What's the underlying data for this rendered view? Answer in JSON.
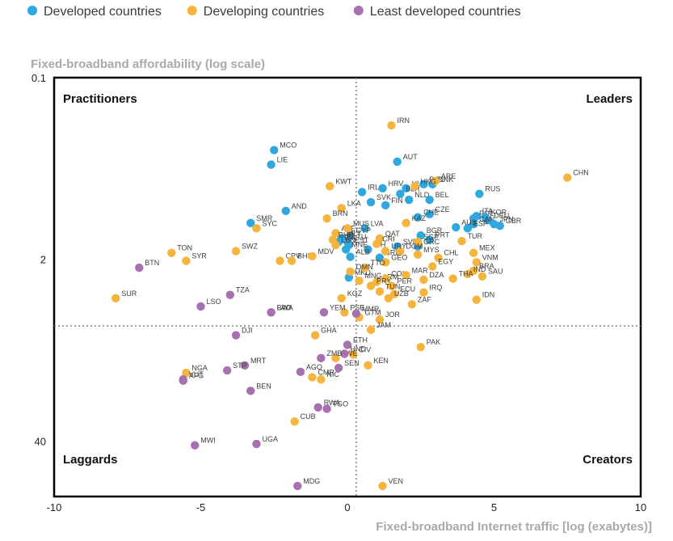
{
  "chart_data": {
    "type": "scatter",
    "title": "",
    "xlabel": "Fixed-broadband Internet traffic [log (exabytes)]",
    "ylabel": "Fixed-broadband affordability (log scale)",
    "xlim": [
      -10,
      10
    ],
    "ylim_log": [
      0.1,
      100
    ],
    "x_ticks": [
      {
        "value": -10,
        "label": "-10"
      },
      {
        "value": -5,
        "label": "-5"
      },
      {
        "value": 0,
        "label": "0"
      },
      {
        "value": 5,
        "label": "5"
      },
      {
        "value": 10,
        "label": "10"
      }
    ],
    "y_ticks": [
      {
        "value": 0.1,
        "label": "0.1"
      },
      {
        "value": 2,
        "label": "2"
      },
      {
        "value": 40,
        "label": "40"
      }
    ],
    "x_divider": 0.3,
    "y_divider": 6,
    "quadrants": {
      "top_left": "Practitioners",
      "top_right": "Leaders",
      "bottom_left": "Laggards",
      "bottom_right": "Creators"
    },
    "series": [
      {
        "name": "Developed countries",
        "key": "developed",
        "color": "#2ea8de"
      },
      {
        "name": "Developing countries",
        "key": "developing",
        "color": "#f5b53c"
      },
      {
        "name": "Least developed countries",
        "key": "least",
        "color": "#a770b0"
      }
    ],
    "points": [
      {
        "code": "MCO",
        "s": "developed",
        "x": -2.5,
        "y": 0.33
      },
      {
        "code": "LIE",
        "s": "developed",
        "x": -2.6,
        "y": 0.42
      },
      {
        "code": "AND",
        "s": "developed",
        "x": -2.1,
        "y": 0.9
      },
      {
        "code": "SMR",
        "s": "developed",
        "x": -3.3,
        "y": 1.1
      },
      {
        "code": "AUT",
        "s": "developed",
        "x": 1.7,
        "y": 0.4
      },
      {
        "code": "IRL",
        "s": "developed",
        "x": 0.5,
        "y": 0.66
      },
      {
        "code": "HRV",
        "s": "developed",
        "x": 1.2,
        "y": 0.62
      },
      {
        "code": "HUN",
        "s": "developed",
        "x": 2.0,
        "y": 0.62
      },
      {
        "code": "BLR",
        "s": "developed",
        "x": 1.8,
        "y": 0.68
      },
      {
        "code": "DNK",
        "s": "developed",
        "x": 2.9,
        "y": 0.58
      },
      {
        "code": "ROU",
        "s": "developed",
        "x": 2.6,
        "y": 0.58
      },
      {
        "code": "NLD",
        "s": "developed",
        "x": 2.1,
        "y": 0.75
      },
      {
        "code": "BEL",
        "s": "developed",
        "x": 2.8,
        "y": 0.75
      },
      {
        "code": "SVK",
        "s": "developed",
        "x": 0.8,
        "y": 0.78
      },
      {
        "code": "FIN",
        "s": "developed",
        "x": 1.3,
        "y": 0.82
      },
      {
        "code": "RUS",
        "s": "developed",
        "x": 4.5,
        "y": 0.68
      },
      {
        "code": "CZE",
        "s": "developed",
        "x": 2.8,
        "y": 0.95
      },
      {
        "code": "CHE",
        "s": "developed",
        "x": 2.4,
        "y": 1.0
      },
      {
        "code": "ITA",
        "s": "developed",
        "x": 4.4,
        "y": 0.98
      },
      {
        "code": "POL",
        "s": "developed",
        "x": 4.3,
        "y": 1.02
      },
      {
        "code": "KOR",
        "s": "developed",
        "x": 4.7,
        "y": 1.0
      },
      {
        "code": "DEU",
        "s": "developed",
        "x": 4.8,
        "y": 1.05
      },
      {
        "code": "CAN",
        "s": "developed",
        "x": 4.3,
        "y": 1.12
      },
      {
        "code": "JPN",
        "s": "developed",
        "x": 5.0,
        "y": 1.12
      },
      {
        "code": "ESP",
        "s": "developed",
        "x": 4.1,
        "y": 1.2
      },
      {
        "code": "GBR",
        "s": "developed",
        "x": 5.2,
        "y": 1.15
      },
      {
        "code": "AUS",
        "s": "developed",
        "x": 3.7,
        "y": 1.18
      },
      {
        "code": "LVA",
        "s": "developed",
        "x": 0.6,
        "y": 1.2
      },
      {
        "code": "CYP",
        "s": "developed",
        "x": 0.1,
        "y": 1.35
      },
      {
        "code": "LTU",
        "s": "developed",
        "x": 0.0,
        "y": 1.5
      },
      {
        "code": "EST",
        "s": "developed",
        "x": 0.05,
        "y": 1.58
      },
      {
        "code": "BGR",
        "s": "developed",
        "x": 2.5,
        "y": 1.35
      },
      {
        "code": "PRT",
        "s": "developed",
        "x": 2.8,
        "y": 1.45
      },
      {
        "code": "MLT",
        "s": "developed",
        "x": -0.2,
        "y": 1.42
      },
      {
        "code": "SVN",
        "s": "developed",
        "x": 1.7,
        "y": 1.62
      },
      {
        "code": "GRC",
        "s": "developed",
        "x": 2.4,
        "y": 1.62
      },
      {
        "code": "SRB",
        "s": "developed",
        "x": 1.1,
        "y": 1.95
      },
      {
        "code": "BIH",
        "s": "developed",
        "x": 0.7,
        "y": 1.7
      },
      {
        "code": "ALB",
        "s": "developed",
        "x": 0.1,
        "y": 1.92
      },
      {
        "code": "MKD",
        "s": "developed",
        "x": 0.05,
        "y": 2.7
      },
      {
        "code": "MNE",
        "s": "developed",
        "x": -0.05,
        "y": 1.7
      },
      {
        "code": "ISL",
        "s": "developed",
        "x": -0.3,
        "y": 1.5
      },
      {
        "code": "IRN",
        "s": "developing",
        "x": 1.5,
        "y": 0.22
      },
      {
        "code": "CHN",
        "s": "developing",
        "x": 7.5,
        "y": 0.52
      },
      {
        "code": "ARE",
        "s": "developing",
        "x": 3.0,
        "y": 0.55
      },
      {
        "code": "HKG",
        "s": "developing",
        "x": 2.3,
        "y": 0.6
      },
      {
        "code": "KWT",
        "s": "developing",
        "x": -0.6,
        "y": 0.6
      },
      {
        "code": "LKA",
        "s": "developing",
        "x": -0.2,
        "y": 0.86
      },
      {
        "code": "BRN",
        "s": "developing",
        "x": -0.7,
        "y": 1.02
      },
      {
        "code": "SYC",
        "s": "developing",
        "x": -3.1,
        "y": 1.2
      },
      {
        "code": "AZE",
        "s": "developing",
        "x": -0.4,
        "y": 1.3
      },
      {
        "code": "MUS",
        "s": "developing",
        "x": 0.0,
        "y": 1.2
      },
      {
        "code": "BHR",
        "s": "developing",
        "x": -0.5,
        "y": 1.45
      },
      {
        "code": "LBN",
        "s": "developing",
        "x": -0.4,
        "y": 1.58
      },
      {
        "code": "KAZ",
        "s": "developing",
        "x": 2.0,
        "y": 1.1
      },
      {
        "code": "QAT",
        "s": "developing",
        "x": 1.1,
        "y": 1.42
      },
      {
        "code": "CRI",
        "s": "developing",
        "x": 1.0,
        "y": 1.55
      },
      {
        "code": "SGP",
        "s": "developing",
        "x": 2.4,
        "y": 1.5
      },
      {
        "code": "TUR",
        "s": "developing",
        "x": 3.9,
        "y": 1.48
      },
      {
        "code": "MEX",
        "s": "developing",
        "x": 4.3,
        "y": 1.8
      },
      {
        "code": "VNM",
        "s": "developing",
        "x": 4.4,
        "y": 2.1
      },
      {
        "code": "BRA",
        "s": "developing",
        "x": 4.3,
        "y": 2.42
      },
      {
        "code": "SAU",
        "s": "developing",
        "x": 4.6,
        "y": 2.65
      },
      {
        "code": "IND",
        "s": "developing",
        "x": 4.1,
        "y": 2.55
      },
      {
        "code": "THA",
        "s": "developing",
        "x": 3.6,
        "y": 2.75
      },
      {
        "code": "CHL",
        "s": "developing",
        "x": 3.1,
        "y": 1.95
      },
      {
        "code": "MYS",
        "s": "developing",
        "x": 2.4,
        "y": 1.85
      },
      {
        "code": "EGY",
        "s": "developing",
        "x": 2.9,
        "y": 2.25
      },
      {
        "code": "DOM",
        "s": "developing",
        "x": 1.8,
        "y": 1.75
      },
      {
        "code": "URY",
        "s": "developing",
        "x": 1.3,
        "y": 1.75
      },
      {
        "code": "GEO",
        "s": "developing",
        "x": 1.3,
        "y": 2.1
      },
      {
        "code": "ARM",
        "s": "developing",
        "x": 1.0,
        "y": 2.9
      },
      {
        "code": "COL",
        "s": "developing",
        "x": 1.3,
        "y": 2.75
      },
      {
        "code": "DZA",
        "s": "developing",
        "x": 2.6,
        "y": 2.8
      },
      {
        "code": "MAR",
        "s": "developing",
        "x": 2.0,
        "y": 2.6
      },
      {
        "code": "TTO",
        "s": "developing",
        "x": 0.6,
        "y": 2.3
      },
      {
        "code": "MNG",
        "s": "developing",
        "x": 0.4,
        "y": 2.85
      },
      {
        "code": "PRY",
        "s": "developing",
        "x": 0.8,
        "y": 3.1
      },
      {
        "code": "PER",
        "s": "developing",
        "x": 1.5,
        "y": 3.1
      },
      {
        "code": "TUN",
        "s": "developing",
        "x": 1.1,
        "y": 3.4
      },
      {
        "code": "ECU",
        "s": "developing",
        "x": 1.6,
        "y": 3.55
      },
      {
        "code": "UZB",
        "s": "developing",
        "x": 1.4,
        "y": 3.8
      },
      {
        "code": "IRQ",
        "s": "developing",
        "x": 2.6,
        "y": 3.45
      },
      {
        "code": "ZAF",
        "s": "developing",
        "x": 2.2,
        "y": 4.2
      },
      {
        "code": "IDN",
        "s": "developing",
        "x": 4.4,
        "y": 3.9
      },
      {
        "code": "OMN",
        "s": "developing",
        "x": 0.1,
        "y": 2.45
      },
      {
        "code": "PSE",
        "s": "developing",
        "x": -0.1,
        "y": 4.8
      },
      {
        "code": "KGZ",
        "s": "developing",
        "x": -0.2,
        "y": 3.8
      },
      {
        "code": "GTM",
        "s": "developing",
        "x": 0.4,
        "y": 5.2
      },
      {
        "code": "JOR",
        "s": "developing",
        "x": 1.1,
        "y": 5.4
      },
      {
        "code": "JAM",
        "s": "developing",
        "x": 0.8,
        "y": 6.4
      },
      {
        "code": "TON",
        "s": "developing",
        "x": -6.0,
        "y": 1.8
      },
      {
        "code": "SWZ",
        "s": "developing",
        "x": -3.8,
        "y": 1.75
      },
      {
        "code": "CPV",
        "s": "developing",
        "x": -2.3,
        "y": 2.05
      },
      {
        "code": "BHS",
        "s": "developing",
        "x": -1.9,
        "y": 2.05
      },
      {
        "code": "MDV",
        "s": "developing",
        "x": -1.2,
        "y": 1.9
      },
      {
        "code": "SUR",
        "s": "developing",
        "x": -7.9,
        "y": 3.8
      },
      {
        "code": "GHA",
        "s": "developing",
        "x": -1.1,
        "y": 7.0
      },
      {
        "code": "CIV",
        "s": "developing",
        "x": 0.2,
        "y": 9.6
      },
      {
        "code": "KEN",
        "s": "developing",
        "x": 0.7,
        "y": 11.5
      },
      {
        "code": "PAK",
        "s": "developing",
        "x": 2.5,
        "y": 8.5
      },
      {
        "code": "ZWE",
        "s": "developing",
        "x": -0.4,
        "y": 10.2
      },
      {
        "code": "NIC",
        "s": "developing",
        "x": -0.9,
        "y": 14.5
      },
      {
        "code": "CMR",
        "s": "developing",
        "x": -1.2,
        "y": 14.0
      },
      {
        "code": "CUB",
        "s": "developing",
        "x": -1.8,
        "y": 29.0
      },
      {
        "code": "NGA",
        "s": "developing",
        "x": -5.5,
        "y": 13.0
      },
      {
        "code": "VEN",
        "s": "developing",
        "x": 1.2,
        "y": 84.0
      },
      {
        "code": "BTN",
        "s": "least",
        "x": -7.1,
        "y": 2.3
      },
      {
        "code": "SYR",
        "s": "developing",
        "x": -5.5,
        "y": 2.05
      },
      {
        "code": "TZA",
        "s": "least",
        "x": -4.0,
        "y": 3.6
      },
      {
        "code": "LSO",
        "s": "least",
        "x": -5.0,
        "y": 4.35
      },
      {
        "code": "LAO",
        "s": "least",
        "x": -2.6,
        "y": 4.8
      },
      {
        "code": "BWA",
        "s": "least",
        "x": -2.6,
        "y": 4.8
      },
      {
        "code": "YEM",
        "s": "least",
        "x": -0.8,
        "y": 4.8
      },
      {
        "code": "MMR",
        "s": "least",
        "x": 0.3,
        "y": 4.9
      },
      {
        "code": "DJI",
        "s": "least",
        "x": -3.8,
        "y": 7.0
      },
      {
        "code": "ETH",
        "s": "least",
        "x": 0.0,
        "y": 8.2
      },
      {
        "code": "HND",
        "s": "least",
        "x": -0.1,
        "y": 9.5
      },
      {
        "code": "ZMB",
        "s": "least",
        "x": -0.9,
        "y": 10.2
      },
      {
        "code": "MRT",
        "s": "least",
        "x": -3.5,
        "y": 11.5
      },
      {
        "code": "STP",
        "s": "least",
        "x": -4.1,
        "y": 12.5
      },
      {
        "code": "AGO",
        "s": "least",
        "x": -1.6,
        "y": 12.8
      },
      {
        "code": "SEN",
        "s": "least",
        "x": -0.3,
        "y": 12.0
      },
      {
        "code": "VUT",
        "s": "least",
        "x": -5.6,
        "y": 14.5
      },
      {
        "code": "AFG",
        "s": "least",
        "x": -5.6,
        "y": 14.8
      },
      {
        "code": "BEN",
        "s": "least",
        "x": -3.3,
        "y": 17.5
      },
      {
        "code": "RWA",
        "s": "least",
        "x": -1.0,
        "y": 23.0
      },
      {
        "code": "TGO",
        "s": "least",
        "x": -0.7,
        "y": 23.5
      },
      {
        "code": "MWI",
        "s": "least",
        "x": -5.2,
        "y": 43.0
      },
      {
        "code": "UGA",
        "s": "least",
        "x": -3.1,
        "y": 42.0
      },
      {
        "code": "MDG",
        "s": "least",
        "x": -1.7,
        "y": 84.0
      }
    ]
  }
}
